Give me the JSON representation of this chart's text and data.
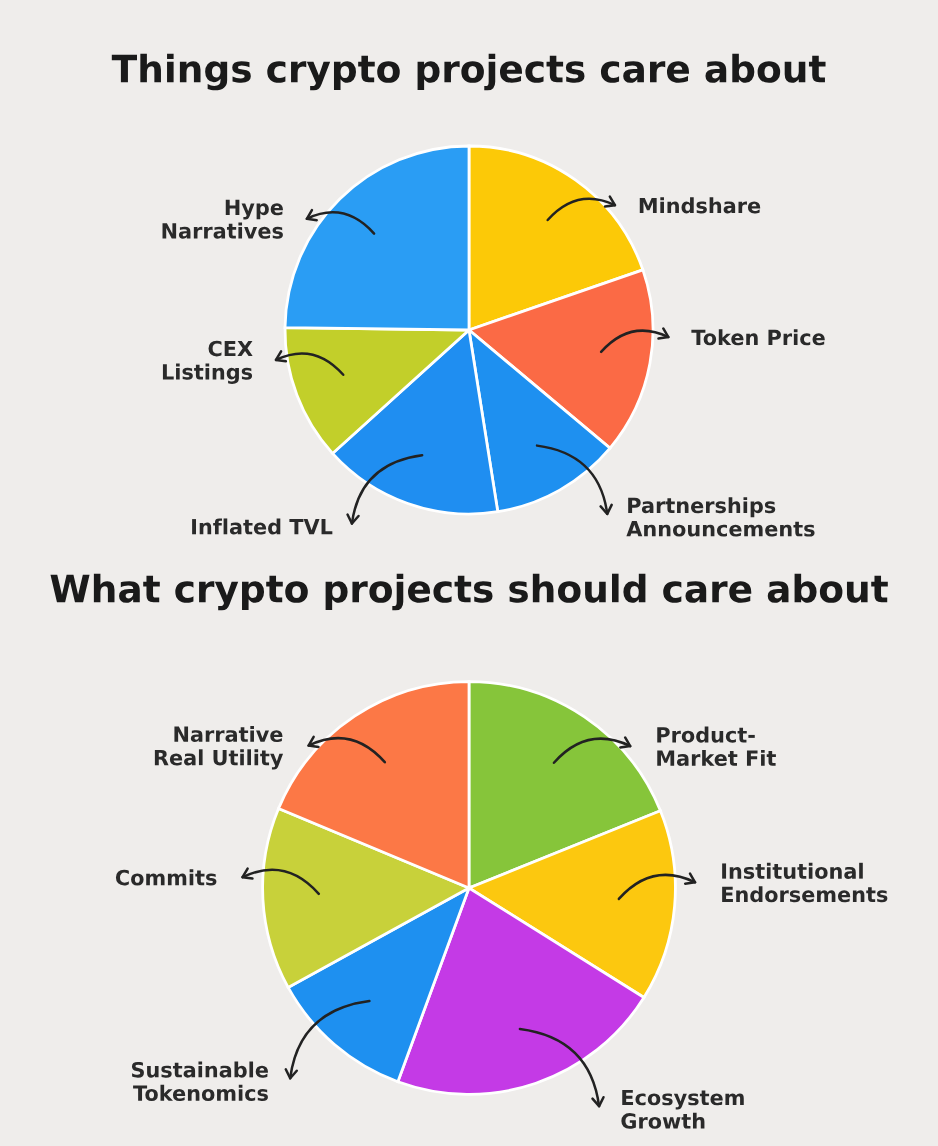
{
  "chart_data": [
    {
      "type": "pie",
      "title": "Things crypto projects care about",
      "categories": [
        "Mindshare",
        "Token Price",
        "Partnerships\nAnnouncements",
        "Inflated TVL",
        "CEX\nListings",
        "Hype\nNarratives"
      ],
      "values": [
        19.7,
        16.4,
        11.4,
        15.8,
        11.9,
        24.8
      ],
      "colors": [
        "#fcc907",
        "#fb6a45",
        "#1e90f0",
        "#1f8ef1",
        "#c2cf2a",
        "#2a9df4"
      ]
    },
    {
      "type": "pie",
      "title": "What crypto projects should care about",
      "categories": [
        "Product-\nMarket Fit",
        "Institutional\nEndorsements",
        "Ecosystem\nGrowth",
        "Sustainable\nTokenomics",
        "Commits",
        "Narrative\nReal Utility"
      ],
      "values": [
        18.9,
        15.0,
        21.7,
        11.4,
        14.3,
        18.7
      ],
      "colors": [
        "#86c53a",
        "#fcc80f",
        "#c43ae6",
        "#1e90f0",
        "#c8d13a",
        "#fc7846"
      ]
    }
  ]
}
